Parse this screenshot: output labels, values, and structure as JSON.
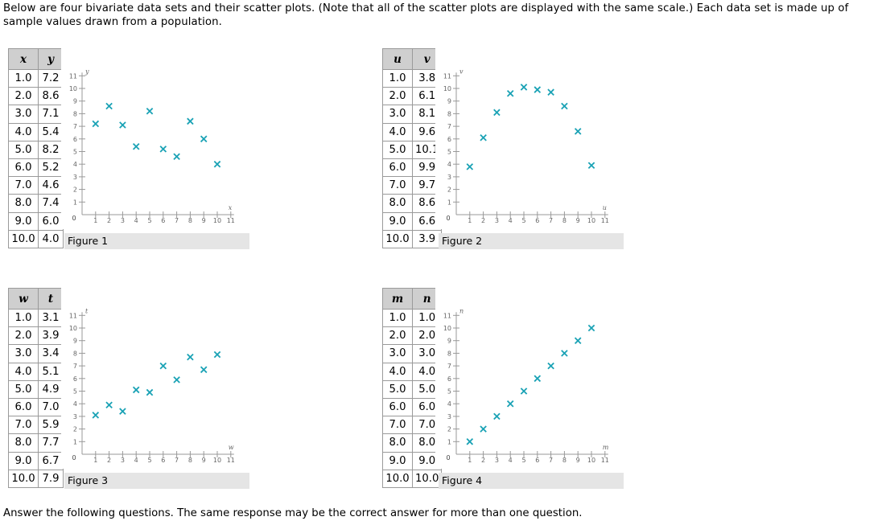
{
  "intro_text": "Below are four bivariate data sets and their scatter plots. (Note that all of the scatter plots are displayed with the same scale.) Each data set is made up of sample values drawn from a population.",
  "outro_text": "Answer the following questions. The same response may be the correct answer for more than one question.",
  "colors": {
    "marker": "#1aa2b5",
    "axis": "#999999",
    "header_bg": "#cfcfcf",
    "caption_bg": "#e5e5e5"
  },
  "chart_data": [
    {
      "type": "scatter",
      "figure_label": "Figure 1",
      "x_name": "x",
      "y_name": "y",
      "xlabel": "x",
      "ylabel": "y",
      "xlim": [
        0,
        11
      ],
      "ylim": [
        0,
        11
      ],
      "x_ticks": [
        "1",
        "2",
        "3",
        "4",
        "5",
        "6",
        "7",
        "8",
        "9",
        "10",
        "11"
      ],
      "y_ticks": [
        "1",
        "2",
        "3",
        "4",
        "5",
        "6",
        "7",
        "8",
        "9",
        "10",
        "11"
      ],
      "origin_label": "0",
      "x": [
        "1.0",
        "2.0",
        "3.0",
        "4.0",
        "5.0",
        "6.0",
        "7.0",
        "8.0",
        "9.0",
        "10.0"
      ],
      "y": [
        "7.2",
        "8.6",
        "7.1",
        "5.4",
        "8.2",
        "5.2",
        "4.6",
        "7.4",
        "6.0",
        "4.0"
      ]
    },
    {
      "type": "scatter",
      "figure_label": "Figure 2",
      "x_name": "u",
      "y_name": "v",
      "xlabel": "u",
      "ylabel": "v",
      "xlim": [
        0,
        11
      ],
      "ylim": [
        0,
        11
      ],
      "x_ticks": [
        "1",
        "2",
        "3",
        "4",
        "5",
        "6",
        "7",
        "8",
        "9",
        "10",
        "11"
      ],
      "y_ticks": [
        "1",
        "2",
        "3",
        "4",
        "5",
        "6",
        "7",
        "8",
        "9",
        "10",
        "11"
      ],
      "origin_label": "0",
      "x": [
        "1.0",
        "2.0",
        "3.0",
        "4.0",
        "5.0",
        "6.0",
        "7.0",
        "8.0",
        "9.0",
        "10.0"
      ],
      "y": [
        "3.8",
        "6.1",
        "8.1",
        "9.6",
        "10.1",
        "9.9",
        "9.7",
        "8.6",
        "6.6",
        "3.9"
      ]
    },
    {
      "type": "scatter",
      "figure_label": "Figure 3",
      "x_name": "w",
      "y_name": "t",
      "xlabel": "w",
      "ylabel": "t",
      "xlim": [
        0,
        11
      ],
      "ylim": [
        0,
        11
      ],
      "x_ticks": [
        "1",
        "2",
        "3",
        "4",
        "5",
        "6",
        "7",
        "8",
        "9",
        "10",
        "11"
      ],
      "y_ticks": [
        "1",
        "2",
        "3",
        "4",
        "5",
        "6",
        "7",
        "8",
        "9",
        "10",
        "11"
      ],
      "origin_label": "0",
      "x": [
        "1.0",
        "2.0",
        "3.0",
        "4.0",
        "5.0",
        "6.0",
        "7.0",
        "8.0",
        "9.0",
        "10.0"
      ],
      "y": [
        "3.1",
        "3.9",
        "3.4",
        "5.1",
        "4.9",
        "7.0",
        "5.9",
        "7.7",
        "6.7",
        "7.9"
      ]
    },
    {
      "type": "scatter",
      "figure_label": "Figure 4",
      "x_name": "m",
      "y_name": "n",
      "xlabel": "m",
      "ylabel": "n",
      "xlim": [
        0,
        11
      ],
      "ylim": [
        0,
        11
      ],
      "x_ticks": [
        "1",
        "2",
        "3",
        "4",
        "5",
        "6",
        "7",
        "8",
        "9",
        "10",
        "11"
      ],
      "y_ticks": [
        "1",
        "2",
        "3",
        "4",
        "5",
        "6",
        "7",
        "8",
        "9",
        "10",
        "11"
      ],
      "origin_label": "0",
      "x": [
        "1.0",
        "2.0",
        "3.0",
        "4.0",
        "5.0",
        "6.0",
        "7.0",
        "8.0",
        "9.0",
        "10.0"
      ],
      "y": [
        "1.0",
        "2.0",
        "3.0",
        "4.0",
        "5.0",
        "6.0",
        "7.0",
        "8.0",
        "9.0",
        "10.0"
      ]
    }
  ]
}
